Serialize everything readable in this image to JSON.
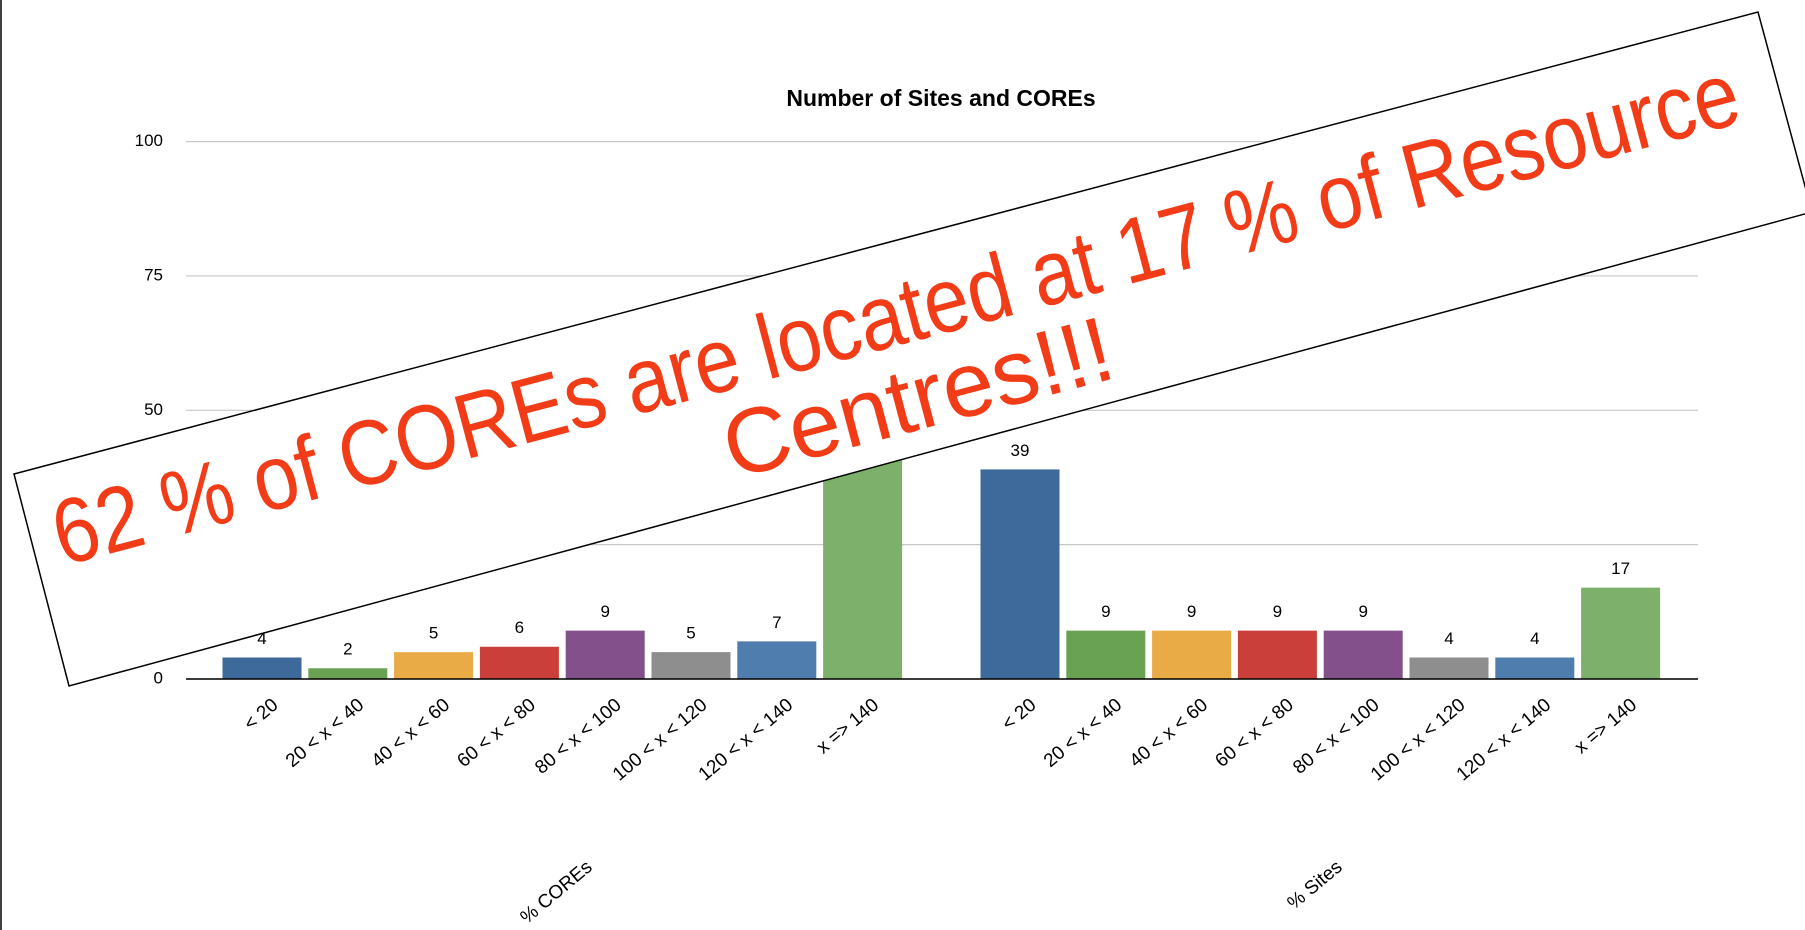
{
  "chart_data": {
    "type": "bar",
    "title": "Number of Sites and COREs",
    "groups": [
      {
        "name": "% COREs",
        "categories": [
          "< 20",
          "20 < x < 40",
          "40 < x < 60",
          "60 < x < 80",
          "80 < x < 100",
          "100 < x < 120",
          "120 < x < 140",
          "x => 140"
        ],
        "values": [
          4,
          2,
          5,
          6,
          9,
          5,
          7,
          62
        ]
      },
      {
        "name": "% Sites",
        "categories": [
          "< 20",
          "20 < x < 40",
          "40 < x < 60",
          "60 < x < 80",
          "80 < x < 100",
          "100 < x < 120",
          "120 < x < 140",
          "x => 140"
        ],
        "values": [
          39,
          9,
          9,
          9,
          9,
          4,
          4,
          17
        ]
      }
    ],
    "colors": [
      "#3d6a9b",
      "#6aa253",
      "#e9ab45",
      "#cb3f3a",
      "#83508b",
      "#8e8e8e",
      "#4f7dad",
      "#7db06a"
    ],
    "ylim": [
      0,
      100
    ],
    "yticks": [
      0,
      25,
      50,
      75,
      100
    ],
    "grid": true,
    "annotation": [
      "62 % of COREs are located at 17 % of Resource",
      "Centres!!!"
    ]
  }
}
